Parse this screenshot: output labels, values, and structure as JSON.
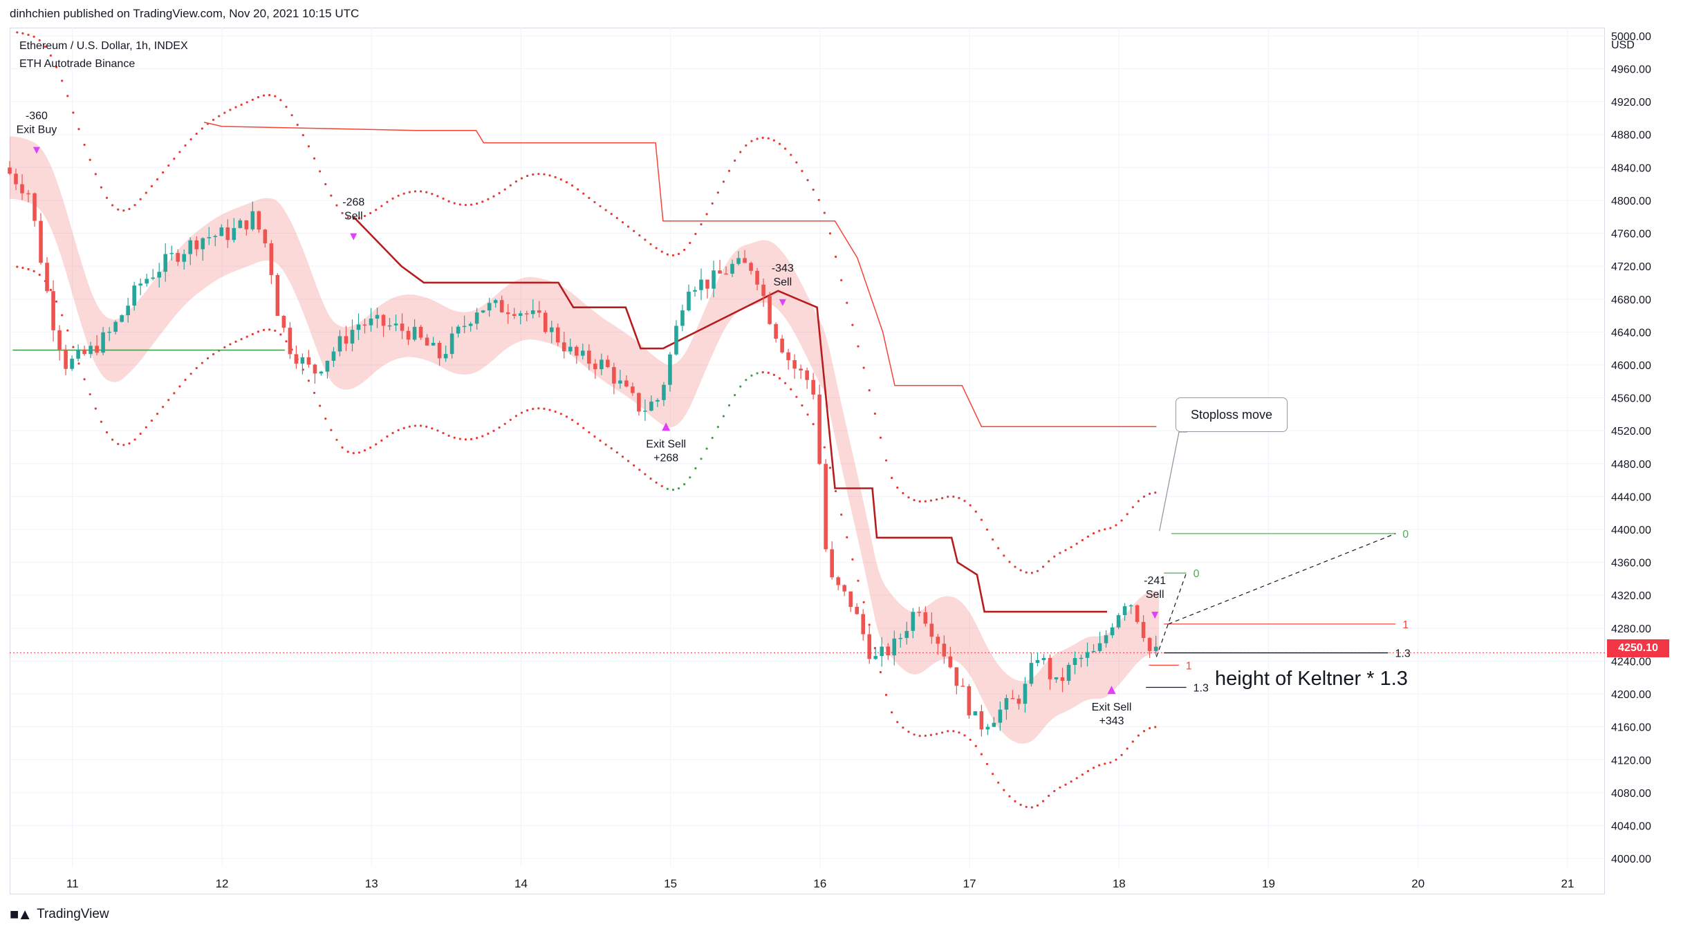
{
  "header": {
    "publish_line": "dinhchien published on TradingView.com, Nov 20, 2021 10:15 UTC"
  },
  "legend": {
    "symbol_line": "Ethereum / U.S. Dollar, 1h, INDEX",
    "indicator_line": "ETH Autotrade Binance"
  },
  "footer": {
    "brand": "TradingView",
    "logo": "tradingview-logo-icon"
  },
  "annotations": {
    "stoploss_move": "Stoploss move",
    "keltner_note": "height of Keltner * 1.3"
  },
  "chart_data": {
    "type": "candlestick",
    "title": "",
    "currency": "USD",
    "timeframe": "1h",
    "x_tick_labels": [
      "11",
      "12",
      "13",
      "14",
      "15",
      "16",
      "17",
      "18",
      "19",
      "20",
      "21"
    ],
    "x_tick_days": [
      11,
      12,
      13,
      14,
      15,
      16,
      17,
      18,
      19,
      20,
      21
    ],
    "xlim_days": [
      10.58,
      21.25
    ],
    "y_tick_labels": [
      "4000.00",
      "4040.00",
      "4080.00",
      "4120.00",
      "4160.00",
      "4200.00",
      "4240.00",
      "4280.00",
      "4320.00",
      "4360.00",
      "4400.00",
      "4440.00",
      "4480.00",
      "4520.00",
      "4560.00",
      "4600.00",
      "4640.00",
      "4680.00",
      "4720.00",
      "4760.00",
      "4800.00",
      "4840.00",
      "4880.00",
      "4920.00",
      "4960.00",
      "5000.00"
    ],
    "ylim": [
      3990,
      5010
    ],
    "last_price": "4250.10",
    "grid": true,
    "colors": {
      "up": "#26a69a",
      "down": "#ef5350",
      "signal_up": "#3d5fa0",
      "signal_down": "#7b1fa2",
      "band_down": "#ef9a9a",
      "band_up": "#a5d6a7",
      "trail_line": "#b71c1c",
      "stop_line": "#f44336",
      "marker": "#e040fb",
      "price_line": "#f23645"
    },
    "price_path": [
      [
        10.58,
        4840
      ],
      [
        10.75,
        4810
      ],
      [
        10.9,
        4660
      ],
      [
        11.0,
        4600
      ],
      [
        11.15,
        4615
      ],
      [
        11.3,
        4640
      ],
      [
        11.5,
        4700
      ],
      [
        11.7,
        4730
      ],
      [
        11.9,
        4755
      ],
      [
        12.1,
        4760
      ],
      [
        12.25,
        4780
      ],
      [
        12.35,
        4740
      ],
      [
        12.42,
        4660
      ],
      [
        12.5,
        4620
      ],
      [
        12.65,
        4590
      ],
      [
        12.8,
        4620
      ],
      [
        12.95,
        4650
      ],
      [
        13.1,
        4650
      ],
      [
        13.3,
        4640
      ],
      [
        13.5,
        4610
      ],
      [
        13.75,
        4670
      ],
      [
        14.0,
        4670
      ],
      [
        14.2,
        4650
      ],
      [
        14.4,
        4610
      ],
      [
        14.6,
        4600
      ],
      [
        14.75,
        4565
      ],
      [
        14.85,
        4545
      ],
      [
        14.97,
        4560
      ],
      [
        15.05,
        4620
      ],
      [
        15.15,
        4700
      ],
      [
        15.3,
        4700
      ],
      [
        15.45,
        4720
      ],
      [
        15.6,
        4720
      ],
      [
        15.72,
        4650
      ],
      [
        15.85,
        4600
      ],
      [
        15.97,
        4580
      ],
      [
        16.02,
        4560
      ],
      [
        16.05,
        4430
      ],
      [
        16.1,
        4340
      ],
      [
        16.25,
        4310
      ],
      [
        16.4,
        4240
      ],
      [
        16.55,
        4260
      ],
      [
        16.7,
        4310
      ],
      [
        16.85,
        4260
      ],
      [
        17.0,
        4200
      ],
      [
        17.1,
        4160
      ],
      [
        17.25,
        4180
      ],
      [
        17.4,
        4200
      ],
      [
        17.5,
        4250
      ],
      [
        17.62,
        4210
      ],
      [
        17.75,
        4240
      ],
      [
        17.9,
        4250
      ],
      [
        18.0,
        4290
      ],
      [
        18.1,
        4320
      ],
      [
        18.2,
        4280
      ],
      [
        18.25,
        4250
      ]
    ],
    "trail_line": [
      [
        12.88,
        4780
      ],
      [
        13.2,
        4720
      ],
      [
        13.35,
        4700
      ],
      [
        14.25,
        4700
      ],
      [
        14.35,
        4670
      ],
      [
        14.7,
        4670
      ],
      [
        14.8,
        4620
      ],
      [
        14.95,
        4620
      ],
      [
        15.72,
        4690
      ],
      [
        15.85,
        4680
      ],
      [
        15.98,
        4670
      ],
      [
        16.1,
        4450
      ],
      [
        16.35,
        4450
      ],
      [
        16.38,
        4390
      ],
      [
        16.88,
        4390
      ],
      [
        16.92,
        4360
      ],
      [
        17.05,
        4345
      ],
      [
        17.1,
        4300
      ],
      [
        17.92,
        4300
      ]
    ],
    "stop_line": [
      [
        11.88,
        4895
      ],
      [
        12.0,
        4890
      ],
      [
        13.3,
        4885
      ],
      [
        13.7,
        4885
      ],
      [
        13.75,
        4870
      ],
      [
        14.9,
        4870
      ],
      [
        14.95,
        4775
      ],
      [
        16.1,
        4775
      ],
      [
        16.25,
        4730
      ],
      [
        16.42,
        4640
      ],
      [
        16.5,
        4575
      ],
      [
        16.95,
        4575
      ],
      [
        17.08,
        4525
      ],
      [
        18.25,
        4525
      ]
    ],
    "signals": [
      {
        "day": 10.76,
        "price": 4870,
        "label": "Exit Buy",
        "value": "-360",
        "pos": "above"
      },
      {
        "day": 12.88,
        "price": 4765,
        "label": "Sell",
        "value": "-268",
        "pos": "above"
      },
      {
        "day": 14.97,
        "price": 4530,
        "label": "Exit Sell",
        "value": "+268",
        "pos": "below"
      },
      {
        "day": 15.75,
        "price": 4685,
        "label": "Sell",
        "value": "-343",
        "pos": "above"
      },
      {
        "day": 17.95,
        "price": 4210,
        "label": "Exit Sell",
        "value": "+343",
        "pos": "below"
      },
      {
        "day": 18.24,
        "price": 4305,
        "label": "Sell",
        "value": "-241",
        "pos": "above"
      }
    ],
    "fib_levels": [
      {
        "label": "0",
        "price": 4395,
        "day_start": 18.35,
        "day_end": 19.85,
        "color": "#4caf50"
      },
      {
        "label": "0",
        "price": 4347,
        "day_start": 18.3,
        "day_end": 18.45,
        "color": "#4caf50"
      },
      {
        "label": "1",
        "price": 4285,
        "day_start": 18.3,
        "day_end": 19.85,
        "color": "#f44336"
      },
      {
        "label": "1",
        "price": 4235,
        "day_start": 18.2,
        "day_end": 18.4,
        "color": "#f44336"
      },
      {
        "label": "1.3",
        "price": 4250,
        "day_start": 18.3,
        "day_end": 19.8,
        "color": "#131722"
      },
      {
        "label": "1.3",
        "price": 4208,
        "day_start": 18.18,
        "day_end": 18.45,
        "color": "#131722"
      }
    ]
  }
}
